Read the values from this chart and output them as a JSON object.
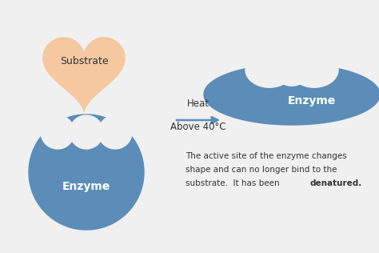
{
  "bg_color": "#f0f0f0",
  "enzyme_color": "#5b8db8",
  "substrate_color": "#f5c8a0",
  "text_color_dark": "#333333",
  "text_color_white": "#ffffff",
  "arrow_color": "#5b8db8",
  "enzyme_label": "Enzyme",
  "substrate_label": "Substrate",
  "description_line1": "The active site of the enzyme changes",
  "description_line2": "shape and can no longer bind to the",
  "description_line3_normal": "substrate.  It has been ",
  "description_line3_bold": "denatured.",
  "heat_line1": "Heat",
  "heat_line2": "Above 40°C",
  "figsize": [
    4.74,
    3.16
  ],
  "dpi": 100
}
